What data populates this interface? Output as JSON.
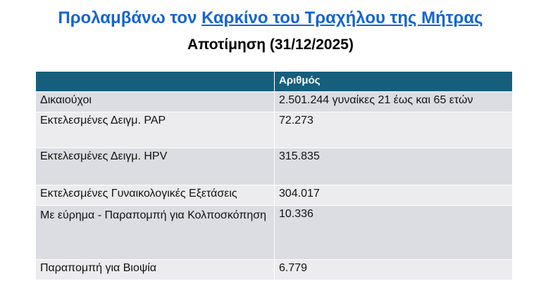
{
  "title": {
    "prefix": "Προλαμβάνω τον ",
    "link": "Καρκίνο του Τραχήλου της Μήτρας"
  },
  "subtitle": "Αποτίμηση (31/12/2025)",
  "colors": {
    "title": "#1464d2",
    "header_bg": "#155f7c",
    "row_odd": "#dcdde2",
    "row_even": "#ececef"
  },
  "table": {
    "headers": [
      "",
      "Αριθμός"
    ],
    "rows": [
      {
        "label": "Δικαιούχοι",
        "value": "2.501.244 γυναίκες 21 έως και 65 ετών"
      },
      {
        "label": "Εκτελεσμένες Δειγμ. PAP",
        "value": "72.273"
      },
      {
        "label": "Εκτελεσμένες Δειγμ. HPV",
        "value": "315.835"
      },
      {
        "label": "Εκτελεσμένες Γυναικολογικές Εξετάσεις",
        "value": "304.017"
      },
      {
        "label": "Με εύρημα - Παραπομπή για Κολποσκόπηση",
        "value": "10.336"
      },
      {
        "label": "Παραπομπή για Βιοψία",
        "value": "6.779"
      }
    ]
  }
}
